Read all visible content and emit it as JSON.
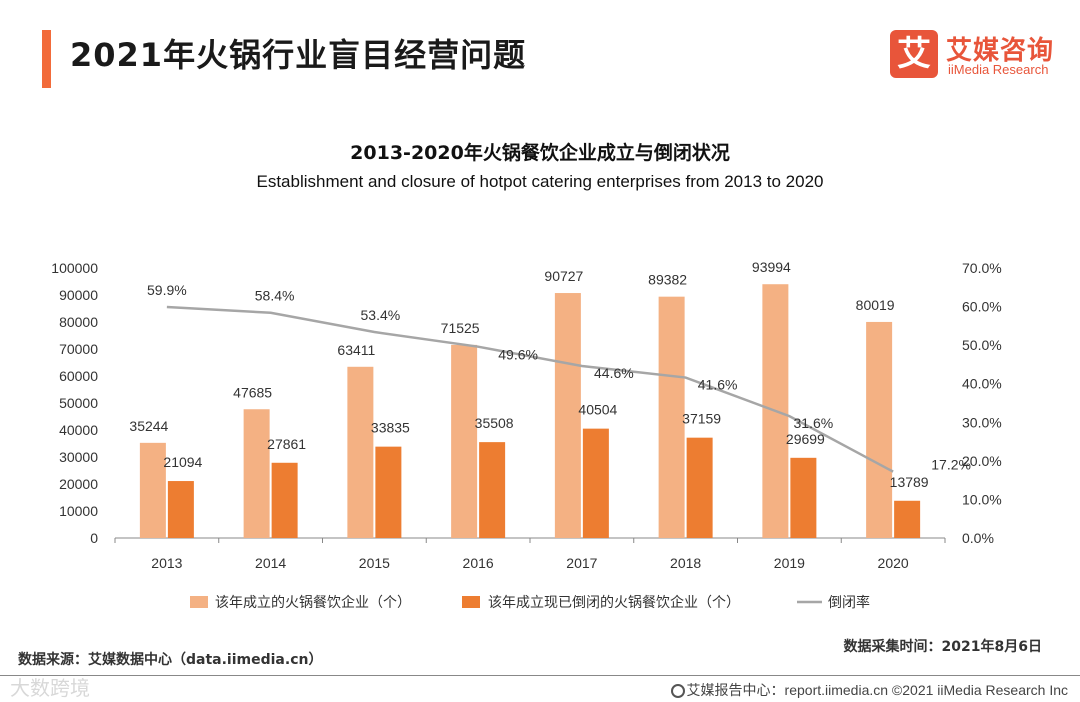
{
  "header": {
    "title": "2021年火锅行业盲目经营问题",
    "logo_mark": "艾",
    "logo_cn": "艾媒咨询",
    "logo_en": "iiMedia Research"
  },
  "chart_data": {
    "type": "bar",
    "title": "2013-2020年火锅餐饮企业成立与倒闭状况",
    "subtitle": "Establishment and closure of hotpot catering enterprises from 2013 to 2020",
    "categories": [
      "2013",
      "2014",
      "2015",
      "2016",
      "2017",
      "2018",
      "2019",
      "2020"
    ],
    "series": [
      {
        "name": "该年成立的火锅餐饮企业（个）",
        "kind": "bar",
        "color": "#f4b183",
        "values": [
          35244,
          47685,
          63411,
          71525,
          90727,
          89382,
          93994,
          80019
        ]
      },
      {
        "name": "该年成立现已倒闭的火锅餐饮企业（个）",
        "kind": "bar",
        "color": "#ed7d31",
        "values": [
          21094,
          27861,
          33835,
          35508,
          40504,
          37159,
          29699,
          13789
        ]
      },
      {
        "name": "倒闭率",
        "kind": "line",
        "axis": "right",
        "color": "#a6a6a6",
        "values": [
          59.9,
          58.4,
          53.4,
          49.6,
          44.6,
          41.6,
          31.6,
          17.2
        ],
        "labels": [
          "59.9%",
          "58.4%",
          "53.4%",
          "49.6%",
          "44.6%",
          "41.6%",
          "31.6%",
          "17.2%"
        ]
      }
    ],
    "ylim": [
      0,
      100000
    ],
    "yticks": [
      "0",
      "10000",
      "20000",
      "30000",
      "40000",
      "50000",
      "60000",
      "70000",
      "80000",
      "90000",
      "100000"
    ],
    "y2lim": [
      0,
      70
    ],
    "y2ticks": [
      "0.0%",
      "10.0%",
      "20.0%",
      "30.0%",
      "40.0%",
      "50.0%",
      "60.0%",
      "70.0%"
    ],
    "legend": "bottom"
  },
  "footer": {
    "source": "数据来源：艾媒数据中心（data.iimedia.cn）",
    "collect_time": "数据采集时间：2021年8月6日",
    "report": "艾媒报告中心：report.iimedia.cn  ©2021  iiMedia Research  Inc",
    "watermark": "大数跨境"
  },
  "colors": {
    "accent": "#f26b3a",
    "brand": "#e8553a"
  }
}
